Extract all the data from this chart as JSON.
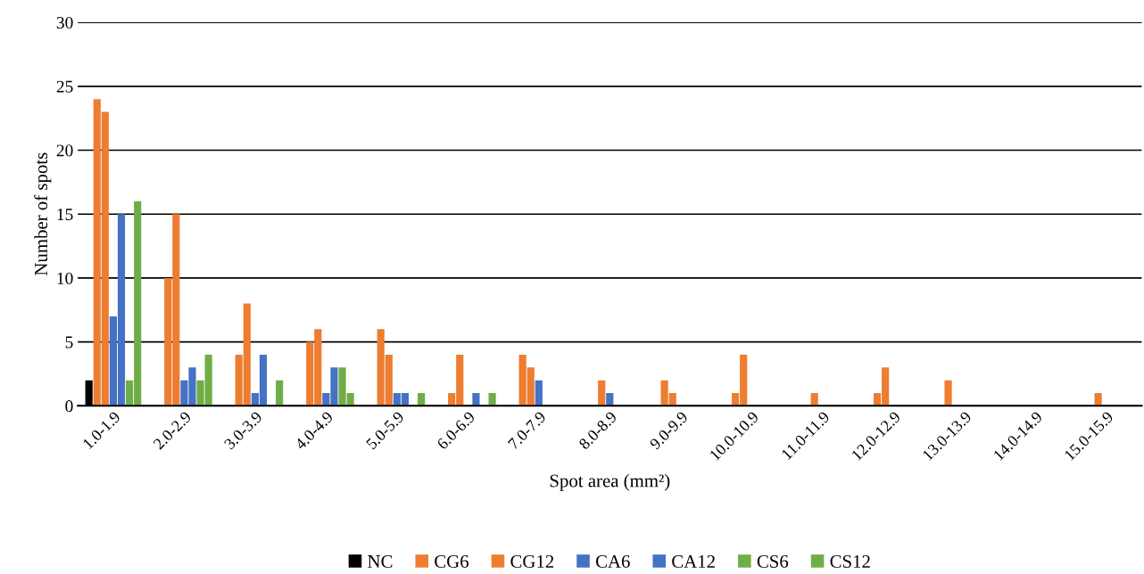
{
  "chart_data": {
    "type": "bar",
    "xlabel": "Spot area (mm²)",
    "ylabel": "Number of spots",
    "categories": [
      "1.0-1.9",
      "2.0-2.9",
      "3.0-3.9",
      "4.0-4.9",
      "5.0-5.9",
      "6.0-6.9",
      "7.0-7.9",
      "8.0-8.9",
      "9.0-9.9",
      "10.0-10.9",
      "11.0-11.9",
      "12.0-12.9",
      "13.0-13.9",
      "14.0-14.9",
      "15.0-15.9"
    ],
    "series": [
      {
        "name": "NC",
        "color": "#000000",
        "values": [
          2,
          0,
          0,
          0,
          0,
          0,
          0,
          0,
          0,
          0,
          0,
          0,
          0,
          0,
          0
        ]
      },
      {
        "name": "CG6",
        "color": "#ed7d31",
        "values": [
          24,
          10,
          4,
          5,
          6,
          1,
          4,
          0,
          2,
          1,
          0,
          1,
          2,
          0,
          0
        ]
      },
      {
        "name": "CG12",
        "color": "#ed7d31",
        "values": [
          23,
          15,
          8,
          6,
          4,
          4,
          3,
          2,
          1,
          4,
          1,
          3,
          0,
          0,
          1
        ]
      },
      {
        "name": "CA6",
        "color": "#4472c4",
        "values": [
          7,
          2,
          1,
          1,
          1,
          0,
          2,
          1,
          0,
          0,
          0,
          0,
          0,
          0,
          0
        ]
      },
      {
        "name": "CA12",
        "color": "#4472c4",
        "values": [
          15,
          3,
          4,
          3,
          1,
          1,
          0,
          0,
          0,
          0,
          0,
          0,
          0,
          0,
          0
        ]
      },
      {
        "name": "CS6",
        "color": "#70ad47",
        "values": [
          2,
          2,
          0,
          3,
          0,
          0,
          0,
          0,
          0,
          0,
          0,
          0,
          0,
          0,
          0
        ]
      },
      {
        "name": "CS12",
        "color": "#70ad47",
        "values": [
          16,
          4,
          2,
          1,
          1,
          1,
          0,
          0,
          0,
          0,
          0,
          0,
          0,
          0,
          0
        ]
      }
    ],
    "ylim": [
      0,
      30
    ],
    "yticks": [
      0,
      5,
      10,
      15,
      20,
      25,
      30
    ],
    "grid": "y",
    "legend": "bottom"
  }
}
